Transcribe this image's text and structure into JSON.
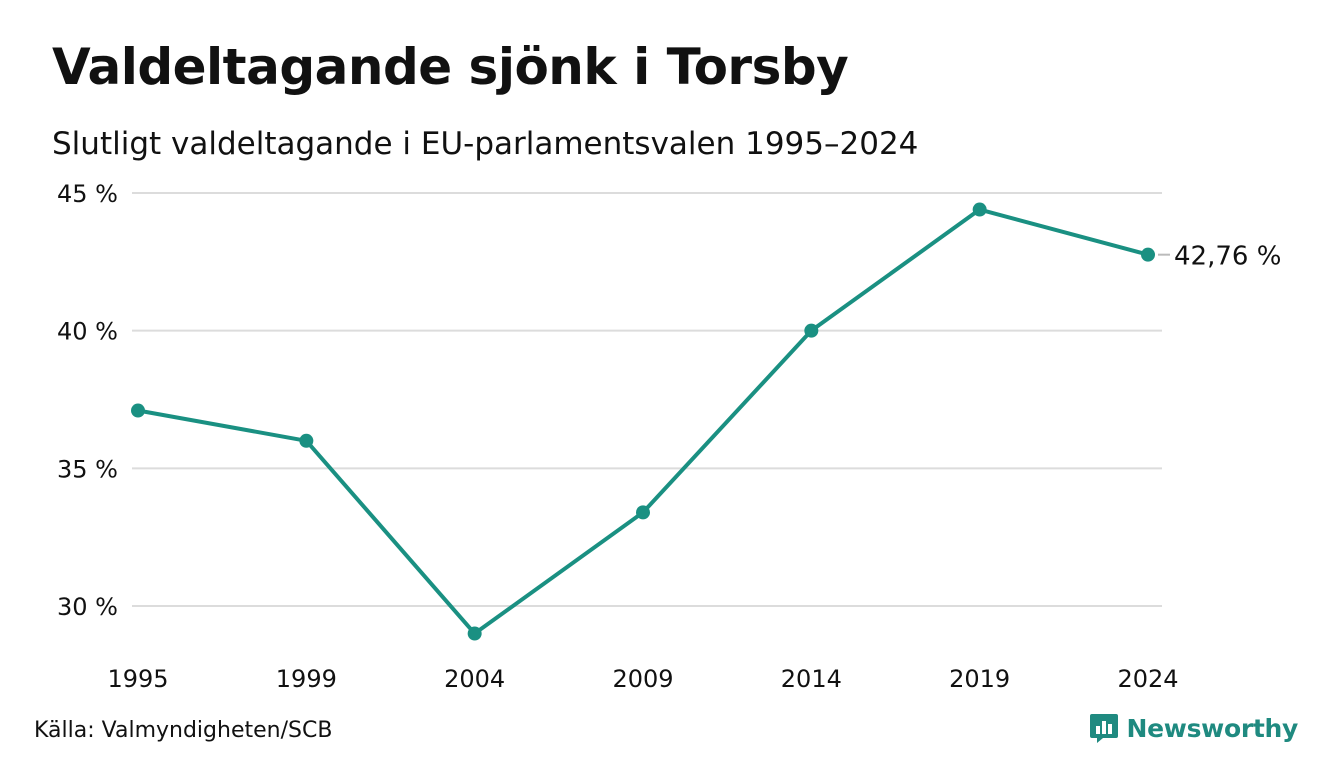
{
  "header": {
    "title": "Valdeltagande sjönk i Torsby",
    "subtitle": "Slutligt valdeltagande i EU-parlamentsvalen 1995–2024"
  },
  "footer": {
    "source": "Källa: Valmyndigheten/SCB",
    "brand": "Newsworthy",
    "brand_icon": "newsworthy-logo-icon"
  },
  "chart_data": {
    "type": "line",
    "title": "Valdeltagande sjönk i Torsby",
    "subtitle": "Slutligt valdeltagande i EU-parlamentsvalen 1995–2024",
    "xlabel": "",
    "ylabel": "",
    "categories": [
      "1995",
      "1999",
      "2004",
      "2009",
      "2014",
      "2019",
      "2024"
    ],
    "series": [
      {
        "values": [
          37.1,
          36.0,
          29.0,
          33.4,
          40.0,
          44.4,
          42.76
        ]
      }
    ],
    "yticks": [
      30,
      35,
      40,
      45
    ],
    "ytick_labels": [
      "30 %",
      "35 %",
      "40 %",
      "45 %"
    ],
    "ylim": [
      29,
      45
    ],
    "end_label": "42,76 %",
    "grid": true,
    "line_color": "#1a9082",
    "grid_color": "#dcdcdc"
  }
}
